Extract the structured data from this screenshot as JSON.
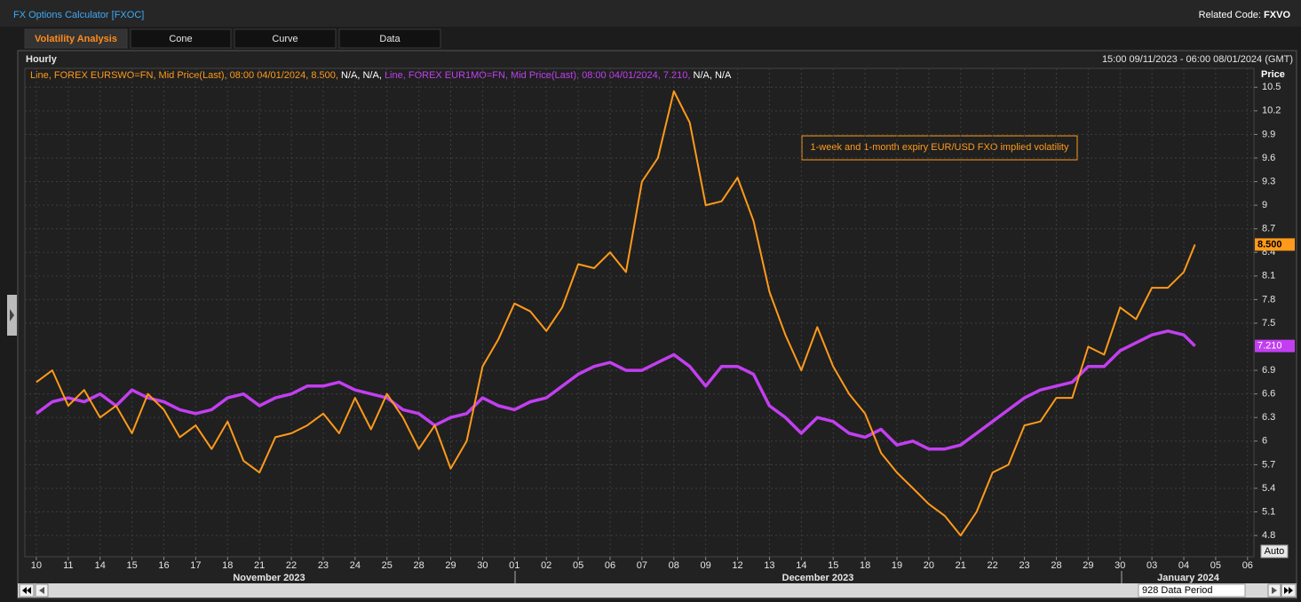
{
  "header": {
    "title": "FX Options Calculator [FXOC]",
    "related_code_label": "Related Code:",
    "related_code": "FXVO"
  },
  "tabs": [
    "Volatility Analysis",
    "Cone",
    "Curve",
    "Data"
  ],
  "chart_data": {
    "type": "line",
    "frequency": "Hourly",
    "date_range": "15:00 09/11/2023 - 06:00 08/01/2024 (GMT)",
    "y_axis_label": "Price",
    "annotation": "1-week and 1-month expiry EUR/USD FXO implied volatility",
    "auto_button": "Auto",
    "data_period": "928 Data Period",
    "month_labels": [
      "November 2023",
      "December 2023",
      "January 2024"
    ],
    "grid": true,
    "xlim": [
      -0.36,
      38.2
    ],
    "ylim": [
      4.53,
      10.74
    ],
    "xticks": [
      {
        "value": 0,
        "label": "10"
      },
      {
        "value": 1,
        "label": "11"
      },
      {
        "value": 2,
        "label": "14"
      },
      {
        "value": 3,
        "label": "15"
      },
      {
        "value": 4,
        "label": "16"
      },
      {
        "value": 5,
        "label": "17"
      },
      {
        "value": 6,
        "label": "18"
      },
      {
        "value": 7,
        "label": "21"
      },
      {
        "value": 8,
        "label": "22"
      },
      {
        "value": 9,
        "label": "23"
      },
      {
        "value": 10,
        "label": "24"
      },
      {
        "value": 11,
        "label": "25"
      },
      {
        "value": 12,
        "label": "28"
      },
      {
        "value": 13,
        "label": "29"
      },
      {
        "value": 14,
        "label": "30"
      },
      {
        "value": 15,
        "label": "01"
      },
      {
        "value": 16,
        "label": "02"
      },
      {
        "value": 17,
        "label": "05"
      },
      {
        "value": 18,
        "label": "06"
      },
      {
        "value": 19,
        "label": "07"
      },
      {
        "value": 20,
        "label": "08"
      },
      {
        "value": 21,
        "label": "09"
      },
      {
        "value": 22,
        "label": "12"
      },
      {
        "value": 23,
        "label": "13"
      },
      {
        "value": 24,
        "label": "14"
      },
      {
        "value": 25,
        "label": "15"
      },
      {
        "value": 26,
        "label": "18"
      },
      {
        "value": 27,
        "label": "19"
      },
      {
        "value": 28,
        "label": "20"
      },
      {
        "value": 29,
        "label": "21"
      },
      {
        "value": 30,
        "label": "22"
      },
      {
        "value": 31,
        "label": "23"
      },
      {
        "value": 32,
        "label": "28"
      },
      {
        "value": 33,
        "label": "29"
      },
      {
        "value": 34,
        "label": "30"
      },
      {
        "value": 35,
        "label": "03"
      },
      {
        "value": 36,
        "label": "04"
      },
      {
        "value": 37,
        "label": "05"
      },
      {
        "value": 38,
        "label": "06"
      }
    ],
    "yticks": [
      4.8,
      5.1,
      5.4,
      5.7,
      6,
      6.3,
      6.6,
      6.9,
      7.5,
      7.8,
      8.1,
      8.4,
      8.7,
      9,
      9.3,
      9.6,
      9.9,
      10.2,
      10.5
    ],
    "x": [
      0,
      0.5,
      1,
      1.5,
      2,
      2.5,
      3,
      3.5,
      4,
      4.5,
      5,
      5.5,
      6,
      6.5,
      7,
      7.5,
      8,
      8.5,
      9,
      9.5,
      10,
      10.5,
      11,
      11.5,
      12,
      12.5,
      13,
      13.5,
      14,
      14.5,
      15,
      15.5,
      16,
      16.5,
      17,
      17.5,
      18,
      18.5,
      19,
      19.5,
      20,
      20.5,
      21,
      21.5,
      22,
      22.5,
      23,
      23.5,
      24,
      24.5,
      25,
      25.5,
      26,
      26.5,
      27,
      27.5,
      28,
      28.5,
      29,
      29.5,
      30,
      30.5,
      31,
      31.5,
      32,
      32.5,
      33,
      33.5,
      34,
      34.5,
      35,
      35.5,
      36,
      36.35
    ],
    "series": [
      {
        "name": "Line, FOREX EURSWO=FN, Mid Price(Last), 08:00 04/01/2024, 8.500,",
        "legend_suffix": "N/A, N/A,",
        "last_value_label": "8.500",
        "color": "#ff9a1a",
        "values": [
          6.75,
          6.9,
          6.45,
          6.65,
          6.3,
          6.45,
          6.1,
          6.6,
          6.4,
          6.05,
          6.2,
          5.9,
          6.25,
          5.75,
          5.6,
          6.05,
          6.1,
          6.2,
          6.35,
          6.1,
          6.55,
          6.15,
          6.6,
          6.3,
          5.9,
          6.2,
          5.65,
          6.0,
          6.95,
          7.3,
          7.75,
          7.65,
          7.4,
          7.7,
          8.25,
          8.2,
          8.4,
          8.15,
          9.3,
          9.6,
          10.45,
          10.05,
          9.0,
          9.05,
          9.35,
          8.8,
          7.9,
          7.35,
          6.9,
          7.45,
          6.95,
          6.6,
          6.35,
          5.85,
          5.6,
          5.4,
          5.2,
          5.05,
          4.8,
          5.1,
          5.6,
          5.7,
          6.2,
          6.25,
          6.55,
          6.55,
          7.2,
          7.1,
          7.7,
          7.55,
          7.95,
          7.95,
          8.15,
          8.5
        ]
      },
      {
        "name": "Line, FOREX EUR1MO=FN, Mid Price(Last), 08:00 04/01/2024, 7.210,",
        "legend_suffix": "N/A, N/A",
        "last_value_label": "7.210",
        "color": "#c23ff0",
        "values": [
          6.35,
          6.5,
          6.55,
          6.5,
          6.6,
          6.45,
          6.65,
          6.55,
          6.5,
          6.4,
          6.35,
          6.4,
          6.55,
          6.6,
          6.45,
          6.55,
          6.6,
          6.7,
          6.7,
          6.75,
          6.65,
          6.6,
          6.55,
          6.4,
          6.35,
          6.2,
          6.3,
          6.35,
          6.55,
          6.45,
          6.4,
          6.5,
          6.55,
          6.7,
          6.85,
          6.95,
          7.0,
          6.9,
          6.9,
          7.0,
          7.1,
          6.95,
          6.7,
          6.95,
          6.95,
          6.85,
          6.45,
          6.3,
          6.1,
          6.3,
          6.25,
          6.1,
          6.05,
          6.15,
          5.95,
          6.0,
          5.9,
          5.9,
          5.95,
          6.1,
          6.25,
          6.4,
          6.55,
          6.65,
          6.7,
          6.75,
          6.95,
          6.95,
          7.15,
          7.25,
          7.35,
          7.4,
          7.35,
          7.21
        ]
      }
    ]
  }
}
